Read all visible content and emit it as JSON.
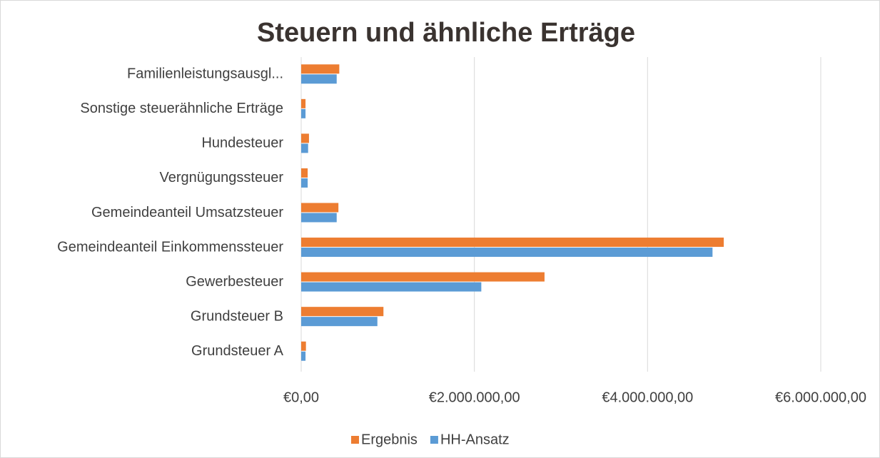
{
  "chart_data": {
    "type": "bar",
    "orientation": "horizontal",
    "title": "Steuern und ähnliche Erträge",
    "categories": [
      "Grundsteuer A",
      "Grundsteuer B",
      "Gewerbesteuer",
      "Gemeindeanteil Einkommenssteuer ",
      "Gemeindeanteil Umsatzsteuer",
      "Vergnügungssteuer ",
      "Hundesteuer",
      "Sonstige steuerähnliche Erträge",
      "Familienleistungsausgl..."
    ],
    "series": [
      {
        "name": "Ergebnis",
        "color": "#ed7d31",
        "values": [
          55000,
          950000,
          2810000,
          4880000,
          430000,
          75000,
          90000,
          50000,
          440000
        ]
      },
      {
        "name": "HH-Ansatz",
        "color": "#5b9bd5",
        "values": [
          50000,
          880000,
          2080000,
          4750000,
          410000,
          75000,
          80000,
          50000,
          410000
        ]
      }
    ],
    "xlim": [
      0,
      6000000
    ],
    "xticks": [
      {
        "value": 0,
        "label": "€0,00"
      },
      {
        "value": 2000000,
        "label": "€2.000.000,00"
      },
      {
        "value": 4000000,
        "label": "€4.000.000,00"
      },
      {
        "value": 6000000,
        "label": "€6.000.000,00"
      }
    ],
    "grid": true,
    "legend": "bottom"
  }
}
